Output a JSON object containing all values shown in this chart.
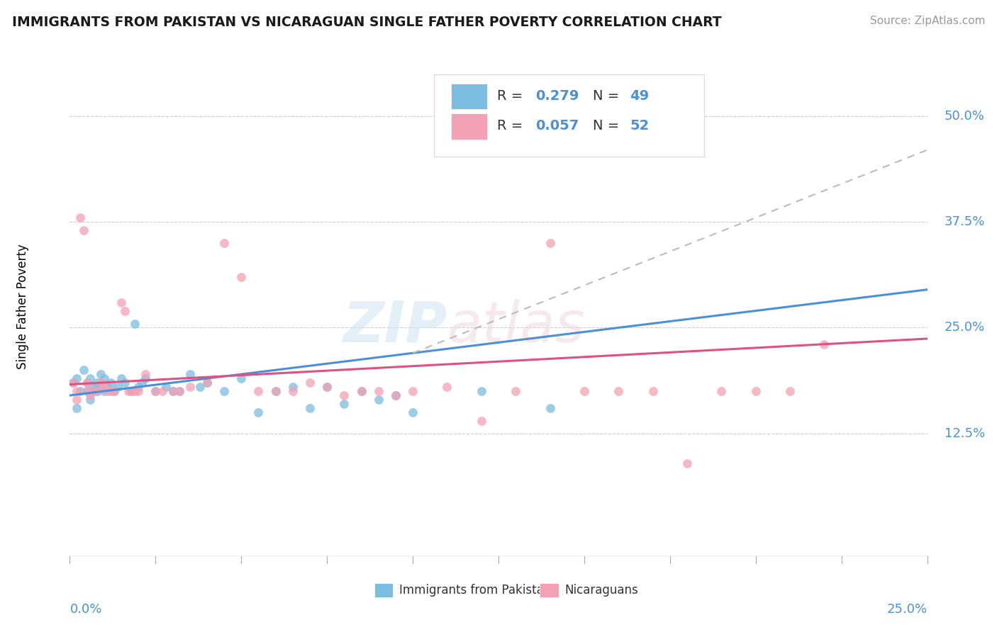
{
  "title": "IMMIGRANTS FROM PAKISTAN VS NICARAGUAN SINGLE FATHER POVERTY CORRELATION CHART",
  "source": "Source: ZipAtlas.com",
  "ylabel": "Single Father Poverty",
  "ytick_vals": [
    0.125,
    0.25,
    0.375,
    0.5
  ],
  "ytick_labels": [
    "12.5%",
    "25.0%",
    "37.5%",
    "50.0%"
  ],
  "xlim": [
    0.0,
    0.25
  ],
  "ylim": [
    -0.02,
    0.57
  ],
  "legend_r1": "0.279",
  "legend_n1": "49",
  "legend_r2": "0.057",
  "legend_n2": "52",
  "color_pakistan": "#7bbde0",
  "color_nicaragua": "#f4a0b5",
  "trendline_pakistan_color": "#4a90d9",
  "trendline_nicaragua_color": "#e05080",
  "trendline_dashed_color": "#bbbbbb",
  "pakistan_x": [
    0.001,
    0.002,
    0.002,
    0.003,
    0.004,
    0.005,
    0.005,
    0.006,
    0.006,
    0.007,
    0.007,
    0.008,
    0.008,
    0.009,
    0.009,
    0.01,
    0.01,
    0.011,
    0.012,
    0.013,
    0.014,
    0.015,
    0.016,
    0.018,
    0.019,
    0.02,
    0.021,
    0.022,
    0.025,
    0.028,
    0.03,
    0.032,
    0.035,
    0.038,
    0.04,
    0.045,
    0.05,
    0.055,
    0.06,
    0.065,
    0.07,
    0.075,
    0.08,
    0.085,
    0.09,
    0.095,
    0.1,
    0.12,
    0.14
  ],
  "pakistan_y": [
    0.185,
    0.19,
    0.155,
    0.175,
    0.2,
    0.185,
    0.175,
    0.19,
    0.165,
    0.18,
    0.175,
    0.185,
    0.175,
    0.195,
    0.18,
    0.19,
    0.175,
    0.18,
    0.185,
    0.175,
    0.18,
    0.19,
    0.185,
    0.175,
    0.255,
    0.18,
    0.185,
    0.19,
    0.175,
    0.18,
    0.175,
    0.175,
    0.195,
    0.18,
    0.185,
    0.175,
    0.19,
    0.15,
    0.175,
    0.18,
    0.155,
    0.18,
    0.16,
    0.175,
    0.165,
    0.17,
    0.15,
    0.175,
    0.155
  ],
  "nicaragua_x": [
    0.001,
    0.002,
    0.002,
    0.003,
    0.004,
    0.005,
    0.005,
    0.006,
    0.007,
    0.008,
    0.009,
    0.01,
    0.011,
    0.012,
    0.013,
    0.015,
    0.016,
    0.017,
    0.018,
    0.019,
    0.02,
    0.022,
    0.025,
    0.027,
    0.03,
    0.032,
    0.035,
    0.04,
    0.045,
    0.05,
    0.055,
    0.06,
    0.065,
    0.07,
    0.075,
    0.08,
    0.085,
    0.09,
    0.095,
    0.1,
    0.11,
    0.12,
    0.13,
    0.14,
    0.15,
    0.16,
    0.17,
    0.18,
    0.19,
    0.2,
    0.21,
    0.22
  ],
  "nicaragua_y": [
    0.185,
    0.175,
    0.165,
    0.38,
    0.365,
    0.175,
    0.185,
    0.17,
    0.175,
    0.175,
    0.185,
    0.18,
    0.175,
    0.175,
    0.175,
    0.28,
    0.27,
    0.175,
    0.175,
    0.175,
    0.175,
    0.195,
    0.175,
    0.175,
    0.175,
    0.175,
    0.18,
    0.185,
    0.35,
    0.31,
    0.175,
    0.175,
    0.175,
    0.185,
    0.18,
    0.17,
    0.175,
    0.175,
    0.17,
    0.175,
    0.18,
    0.14,
    0.175,
    0.35,
    0.175,
    0.175,
    0.175,
    0.09,
    0.175,
    0.175,
    0.175,
    0.23
  ],
  "pak_trend_x": [
    0.0,
    0.25
  ],
  "pak_trend_y": [
    0.17,
    0.295
  ],
  "nic_trend_x": [
    0.0,
    0.25
  ],
  "nic_trend_y": [
    0.183,
    0.237
  ],
  "dashed_trend_x": [
    0.1,
    0.25
  ],
  "dashed_trend_y": [
    0.22,
    0.46
  ]
}
